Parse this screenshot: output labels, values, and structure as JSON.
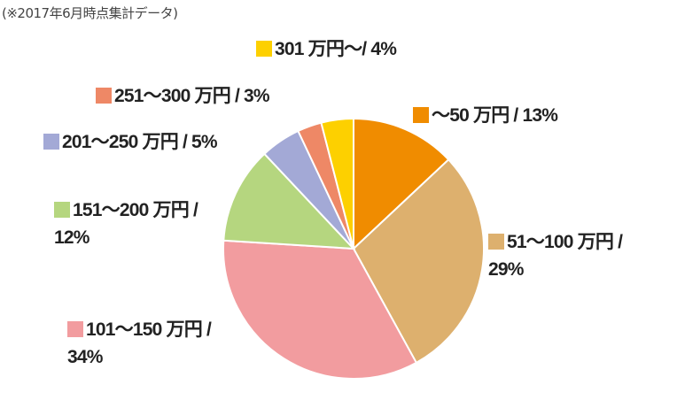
{
  "note": "(※2017年6月時点集計データ)",
  "chart_data": {
    "type": "pie",
    "start": "top",
    "direction": "clockwise",
    "categories": [
      "～50 万円",
      "51～100 万円",
      "101～150 万円",
      "151～200 万円",
      "201～250 万円",
      "251～300 万円",
      "301 万円～"
    ],
    "values": [
      13,
      29,
      34,
      12,
      5,
      3,
      4
    ],
    "unit": "%",
    "colors": [
      "#F08C00",
      "#DDB06E",
      "#F29C9F",
      "#B5D67F",
      "#A3A9D6",
      "#EE8866",
      "#FDD000"
    ],
    "labels": [
      {
        "line1": "～50 万円 / 13%",
        "line2": ""
      },
      {
        "line1": "51～100 万円 /",
        "line2": "29%"
      },
      {
        "line1": "101～150 万円 /",
        "line2": "34%"
      },
      {
        "line1": "151～200 万円 /",
        "line2": "12%"
      },
      {
        "line1": "201～250 万円 / 5%",
        "line2": ""
      },
      {
        "line1": "251～300 万円 / 3%",
        "line2": ""
      },
      {
        "line1": "301 万円～/ 4%",
        "line2": ""
      }
    ]
  }
}
